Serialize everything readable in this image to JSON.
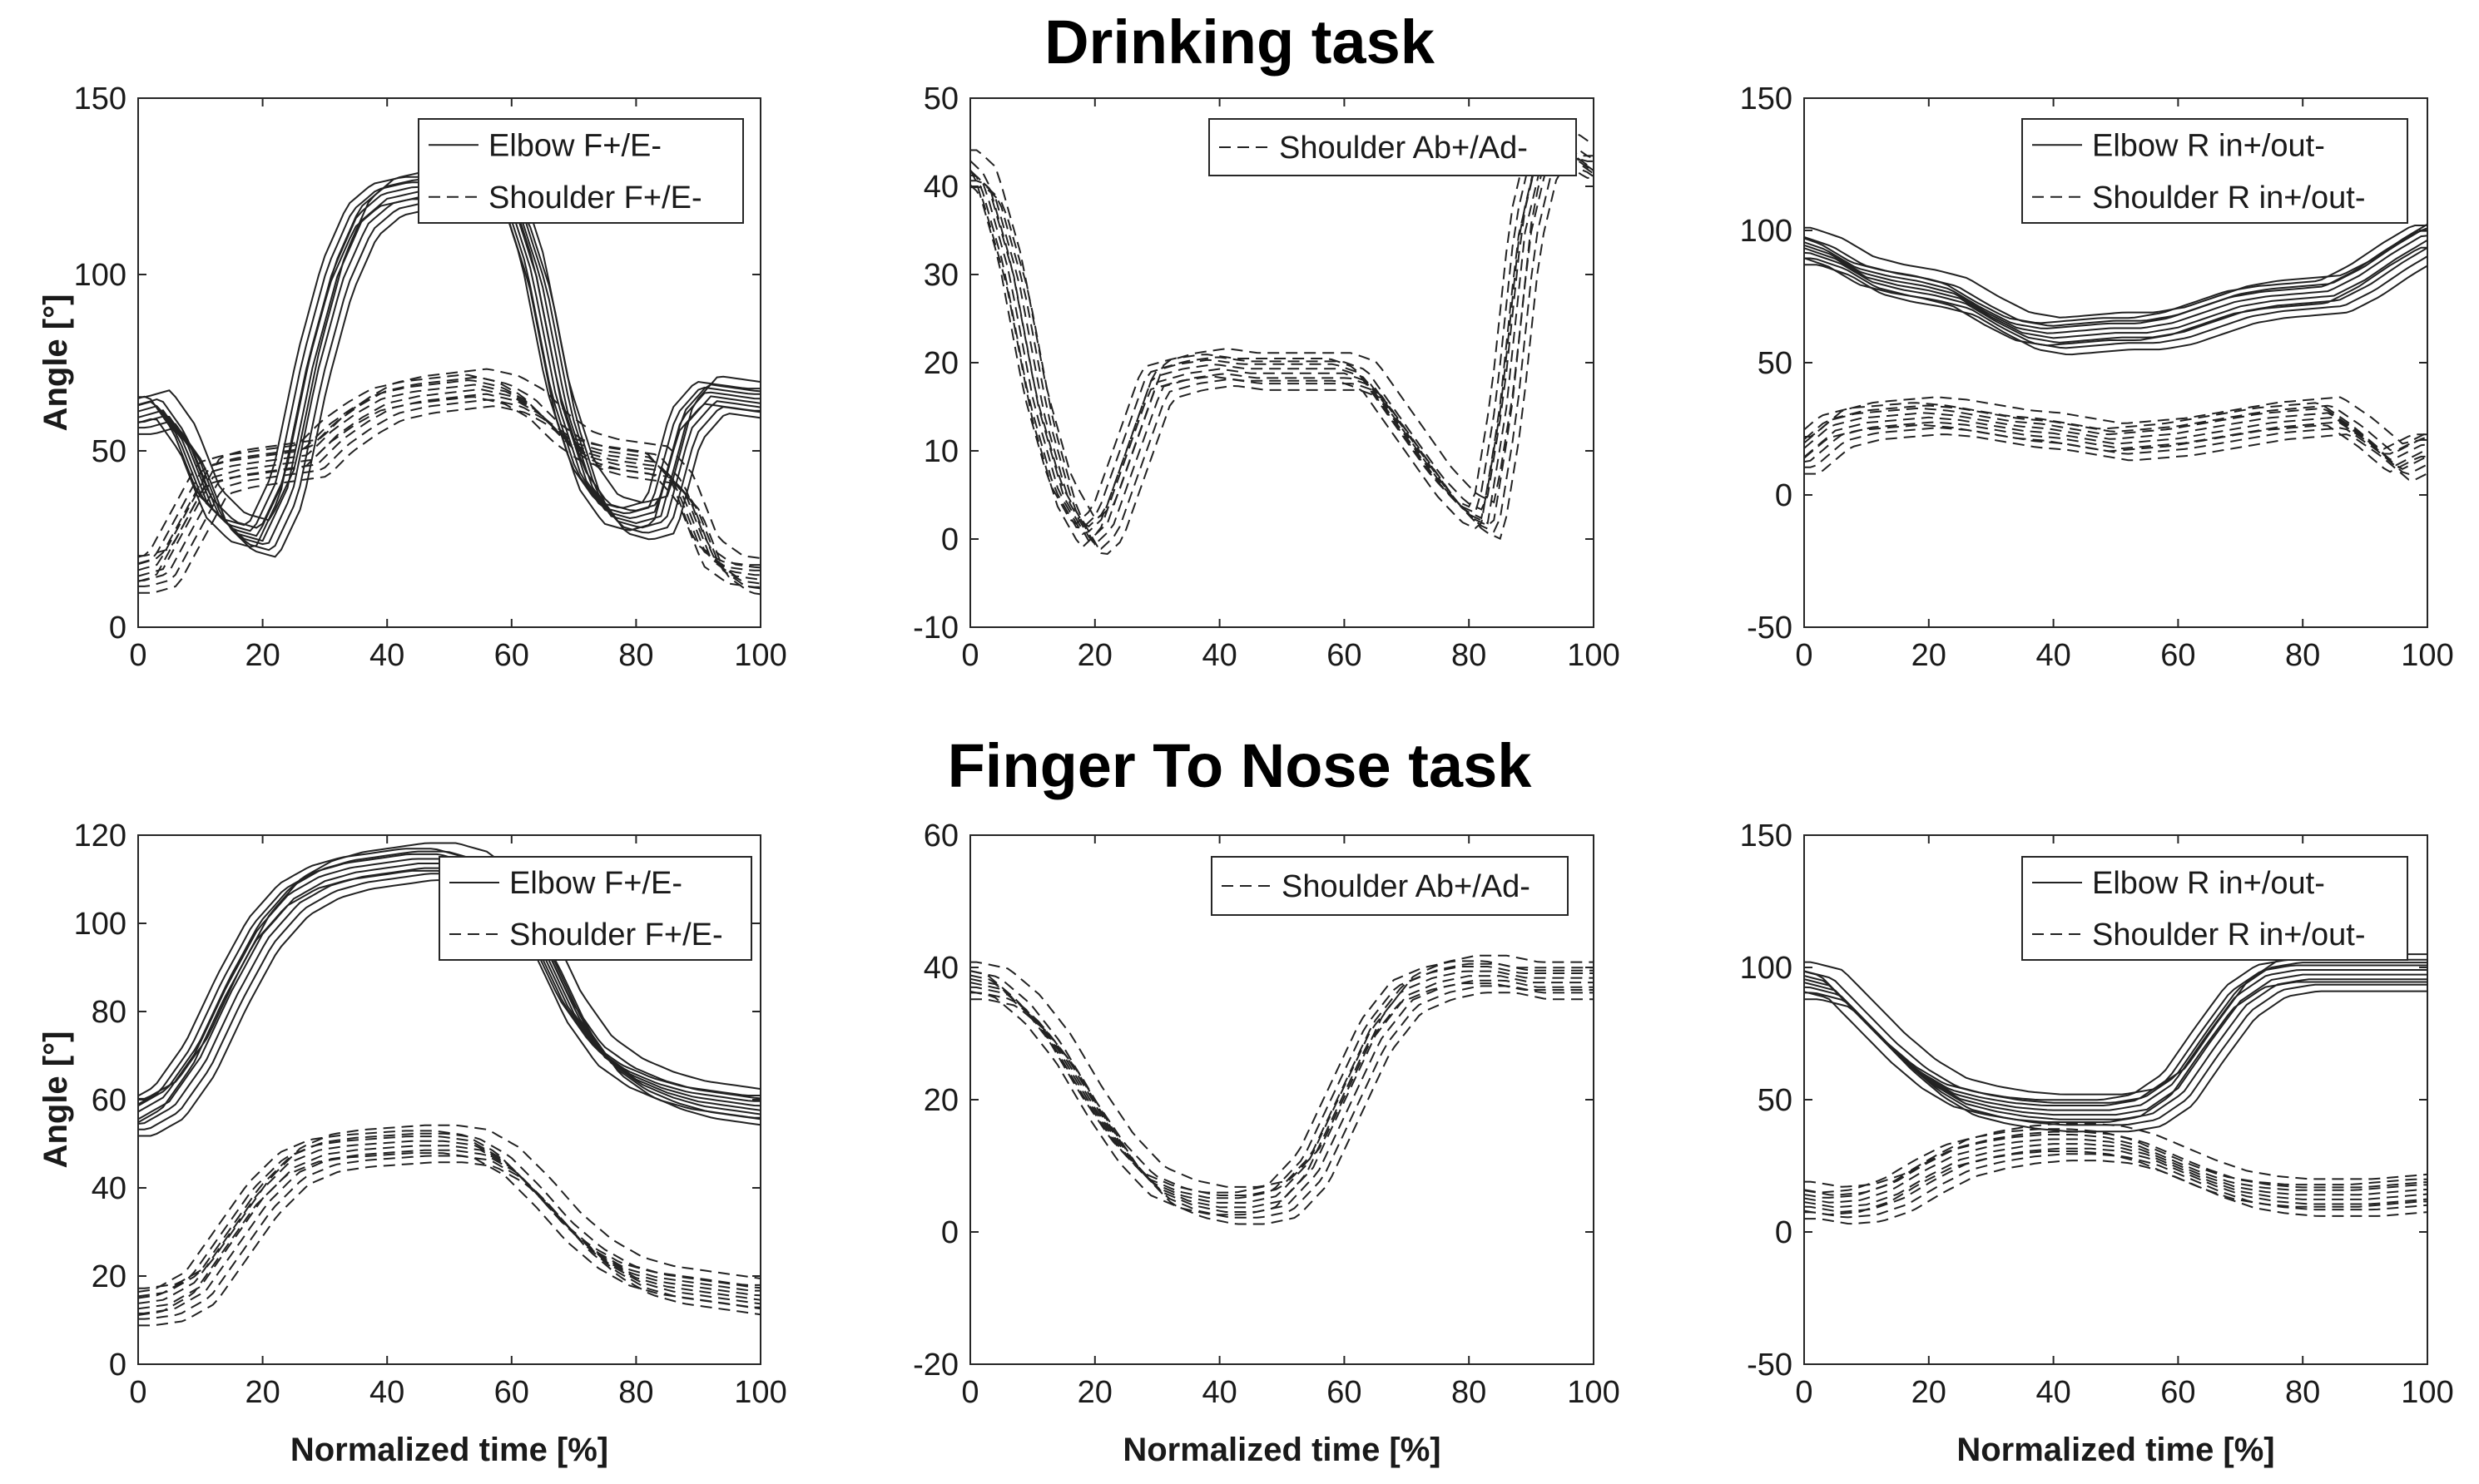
{
  "figure": {
    "title_drinking": "Drinking task",
    "title_ftn": "Finger To Nose task"
  },
  "chart_data": [
    {
      "type": "line",
      "task": "Drinking task",
      "ylabel": "Angle [°]",
      "xlabel": "",
      "xlim": [
        0,
        100
      ],
      "ylim": [
        0,
        150
      ],
      "xticks": [
        0,
        20,
        40,
        60,
        80,
        100
      ],
      "yticks": [
        0,
        50,
        100,
        150
      ],
      "legend": [
        "Elbow F+/E-",
        "Shoulder F+/E-"
      ],
      "series": [
        {
          "name": "Elbow F+/E-",
          "style": "solid",
          "trials": 10,
          "x": [
            0,
            4,
            8,
            12,
            16,
            20,
            24,
            28,
            32,
            36,
            40,
            45,
            50,
            55,
            60,
            64,
            68,
            72,
            76,
            80,
            84,
            88,
            92,
            96,
            100
          ],
          "values": [
            60,
            62,
            52,
            34,
            27,
            25,
            40,
            74,
            100,
            116,
            122,
            124,
            124,
            124,
            122,
            100,
            64,
            42,
            32,
            30,
            32,
            58,
            66,
            65,
            64
          ]
        },
        {
          "name": "Shoulder F+/E-",
          "style": "dashed",
          "trials": 10,
          "x": [
            0,
            4,
            8,
            12,
            16,
            20,
            24,
            28,
            32,
            36,
            40,
            45,
            50,
            55,
            60,
            64,
            68,
            72,
            76,
            80,
            84,
            88,
            92,
            96,
            100
          ],
          "values": [
            15,
            17,
            30,
            43,
            45,
            46,
            47,
            48,
            55,
            60,
            64,
            66,
            67,
            68,
            66,
            62,
            55,
            50,
            48,
            47,
            46,
            38,
            20,
            15,
            14
          ]
        }
      ]
    },
    {
      "type": "line",
      "task": "Drinking task",
      "ylabel": "",
      "xlabel": "",
      "xlim": [
        0,
        100
      ],
      "ylim": [
        -10,
        50
      ],
      "xticks": [
        0,
        20,
        40,
        60,
        80,
        100
      ],
      "yticks": [
        -10,
        0,
        10,
        20,
        30,
        40,
        50
      ],
      "legend": [
        "Shoulder Ab+/Ad-"
      ],
      "series": [
        {
          "name": "Shoulder Ab+/Ad-",
          "style": "dashed",
          "trials": 10,
          "x": [
            0,
            3,
            7,
            11,
            15,
            19,
            22,
            26,
            30,
            35,
            40,
            45,
            50,
            55,
            60,
            64,
            68,
            72,
            76,
            80,
            83,
            86,
            89,
            92,
            96,
            100
          ],
          "values": [
            42,
            40,
            30,
            15,
            5,
            0,
            2,
            10,
            18,
            19,
            19.5,
            19,
            19,
            19,
            19,
            18,
            14,
            10,
            6,
            3,
            2,
            15,
            35,
            44,
            44,
            42
          ]
        }
      ]
    },
    {
      "type": "line",
      "task": "Drinking task",
      "ylabel": "",
      "xlabel": "",
      "xlim": [
        0,
        100
      ],
      "ylim": [
        -50,
        150
      ],
      "xticks": [
        0,
        20,
        40,
        60,
        80,
        100
      ],
      "yticks": [
        -50,
        0,
        50,
        100,
        150
      ],
      "legend": [
        "Elbow R in+/out-",
        "Shoulder R in+/out-"
      ],
      "series": [
        {
          "name": "Elbow R in+/out-",
          "style": "solid",
          "trials": 10,
          "x": [
            0,
            5,
            10,
            15,
            20,
            25,
            30,
            35,
            40,
            45,
            50,
            55,
            60,
            65,
            70,
            75,
            80,
            85,
            90,
            95,
            100
          ],
          "values": [
            94,
            90,
            83,
            80,
            78,
            75,
            68,
            62,
            60,
            61,
            62,
            62,
            64,
            68,
            72,
            74,
            75,
            76,
            82,
            90,
            97
          ]
        },
        {
          "name": "Shoulder R in+/out-",
          "style": "dashed",
          "trials": 10,
          "x": [
            0,
            5,
            10,
            15,
            20,
            25,
            30,
            35,
            40,
            45,
            50,
            55,
            60,
            65,
            70,
            75,
            80,
            85,
            90,
            95,
            100
          ],
          "values": [
            15,
            25,
            28,
            29,
            30,
            29,
            27,
            25,
            24,
            22,
            20,
            21,
            22,
            24,
            26,
            28,
            29,
            30,
            22,
            12,
            18
          ]
        }
      ]
    },
    {
      "type": "line",
      "task": "Finger To Nose task",
      "ylabel": "Angle [°]",
      "xlabel": "Normalized time [%]",
      "xlim": [
        0,
        100
      ],
      "ylim": [
        0,
        120
      ],
      "xticks": [
        0,
        20,
        40,
        60,
        80,
        100
      ],
      "yticks": [
        0,
        20,
        40,
        60,
        80,
        100,
        120
      ],
      "legend": [
        "Elbow F+/E-",
        "Shoulder F+/E-"
      ],
      "series": [
        {
          "name": "Elbow F+/E-",
          "style": "solid",
          "trials": 10,
          "x": [
            0,
            5,
            10,
            15,
            20,
            25,
            30,
            35,
            40,
            45,
            50,
            55,
            60,
            65,
            70,
            75,
            80,
            85,
            90,
            95,
            100
          ],
          "values": [
            56,
            60,
            70,
            85,
            98,
            106,
            110,
            112,
            113,
            114,
            114,
            112,
            106,
            95,
            80,
            70,
            65,
            62,
            60,
            59,
            58
          ]
        },
        {
          "name": "Shoulder F+/E-",
          "style": "dashed",
          "trials": 10,
          "x": [
            0,
            5,
            10,
            15,
            20,
            25,
            30,
            35,
            40,
            45,
            50,
            55,
            60,
            65,
            70,
            75,
            80,
            85,
            90,
            95,
            100
          ],
          "values": [
            13,
            14,
            18,
            28,
            38,
            45,
            48,
            49,
            49.5,
            50,
            50,
            49,
            45,
            38,
            30,
            24,
            20,
            18,
            17,
            16,
            15
          ]
        }
      ]
    },
    {
      "type": "line",
      "task": "Finger To Nose task",
      "ylabel": "",
      "xlabel": "Normalized time [%]",
      "xlim": [
        0,
        100
      ],
      "ylim": [
        -20,
        60
      ],
      "xticks": [
        0,
        20,
        40,
        60,
        80,
        100
      ],
      "yticks": [
        -20,
        0,
        20,
        40,
        60
      ],
      "legend": [
        "Shoulder Ab+/Ad-"
      ],
      "series": [
        {
          "name": "Shoulder Ab+/Ad-",
          "style": "dashed",
          "trials": 10,
          "x": [
            0,
            5,
            10,
            15,
            20,
            25,
            30,
            35,
            40,
            45,
            50,
            55,
            60,
            65,
            70,
            75,
            80,
            85,
            90,
            95,
            100
          ],
          "values": [
            38,
            37,
            33,
            27,
            19,
            12,
            7,
            5,
            4,
            4,
            5,
            10,
            20,
            30,
            36,
            38,
            39,
            39,
            38,
            38,
            38
          ]
        }
      ]
    },
    {
      "type": "line",
      "task": "Finger To Nose task",
      "ylabel": "",
      "xlabel": "Normalized time [%]",
      "xlim": [
        0,
        100
      ],
      "ylim": [
        -50,
        150
      ],
      "xticks": [
        0,
        20,
        40,
        60,
        80,
        100
      ],
      "yticks": [
        -50,
        0,
        50,
        100,
        150
      ],
      "legend": [
        "Elbow R in+/out-",
        "Shoulder R in+/out-"
      ],
      "series": [
        {
          "name": "Elbow R in+/out-",
          "style": "solid",
          "trials": 10,
          "x": [
            0,
            5,
            10,
            15,
            20,
            25,
            30,
            35,
            40,
            45,
            50,
            55,
            60,
            65,
            70,
            75,
            80,
            85,
            90,
            95,
            100
          ],
          "values": [
            95,
            92,
            80,
            68,
            58,
            51,
            48,
            46,
            45,
            45,
            45,
            47,
            55,
            72,
            88,
            96,
            98,
            98,
            98,
            98,
            98
          ]
        },
        {
          "name": "Shoulder R in+/out-",
          "style": "dashed",
          "trials": 10,
          "x": [
            0,
            5,
            10,
            15,
            20,
            25,
            30,
            35,
            40,
            45,
            50,
            55,
            60,
            65,
            70,
            75,
            80,
            85,
            90,
            95,
            100
          ],
          "values": [
            12,
            10,
            11,
            15,
            22,
            28,
            31,
            33,
            34,
            34,
            33,
            30,
            25,
            20,
            16,
            14,
            13,
            13,
            13,
            14,
            15
          ]
        }
      ]
    }
  ]
}
